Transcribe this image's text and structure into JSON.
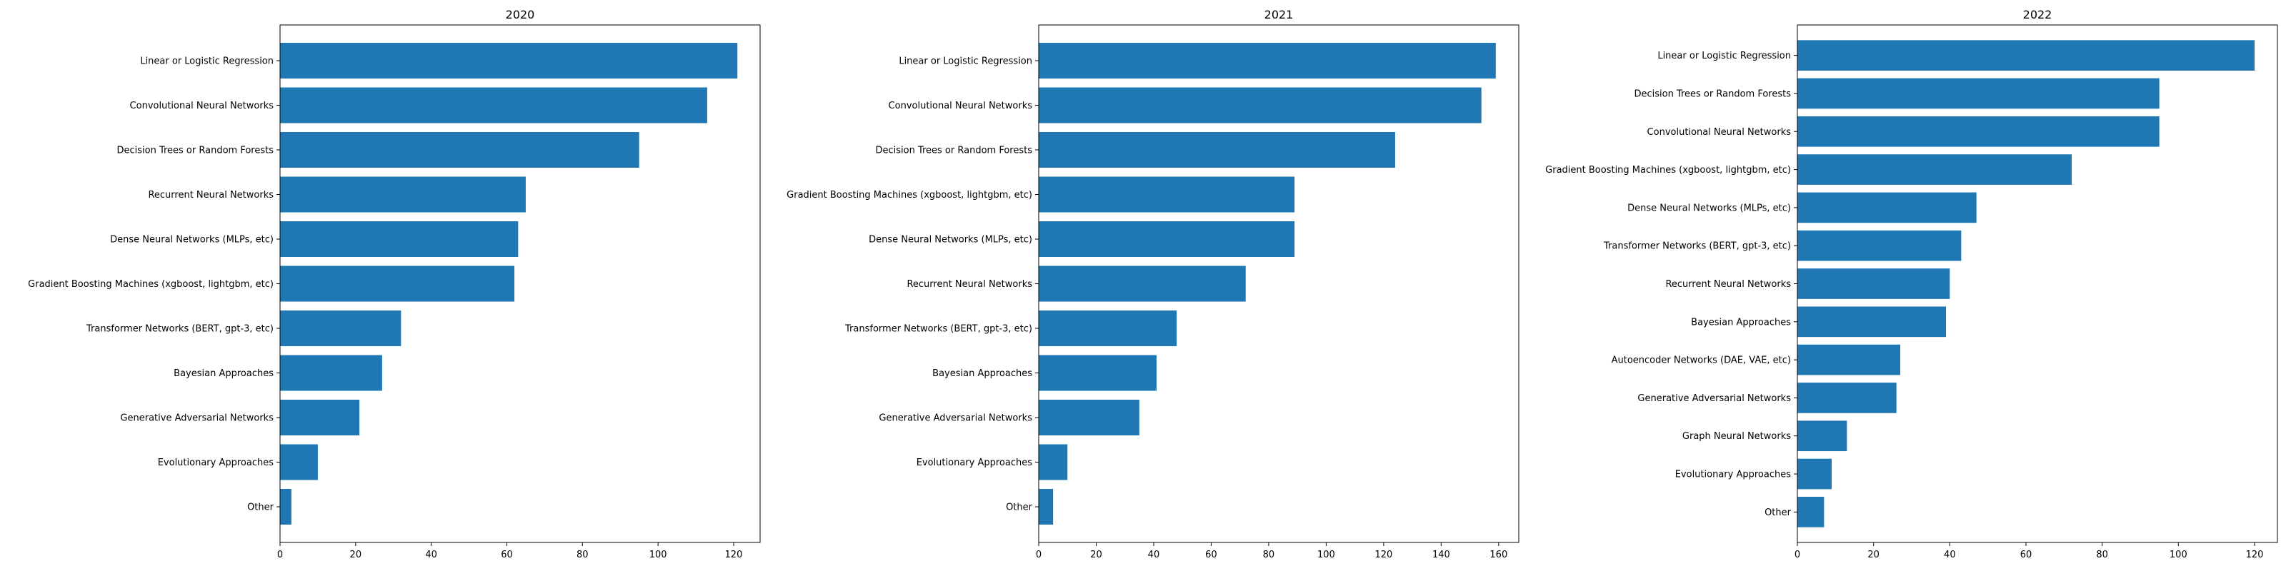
{
  "chart_data": [
    {
      "type": "bar",
      "orientation": "horizontal",
      "title": "2020",
      "xlabel": "",
      "ylabel": "",
      "xlim": [
        0,
        127
      ],
      "xticks": [
        0,
        20,
        40,
        60,
        80,
        100,
        120
      ],
      "grid": false,
      "bar_color": "#1f77b4",
      "categories": [
        "Linear or Logistic Regression",
        "Convolutional Neural Networks",
        "Decision Trees or Random Forests",
        "Recurrent Neural Networks",
        "Dense Neural Networks (MLPs, etc)",
        "Gradient Boosting Machines (xgboost, lightgbm, etc)",
        "Transformer Networks (BERT, gpt-3, etc)",
        "Bayesian Approaches",
        "Generative Adversarial Networks",
        "Evolutionary Approaches",
        "Other"
      ],
      "values": [
        121,
        113,
        95,
        65,
        63,
        62,
        32,
        27,
        21,
        10,
        3
      ]
    },
    {
      "type": "bar",
      "orientation": "horizontal",
      "title": "2021",
      "xlabel": "",
      "ylabel": "",
      "xlim": [
        0,
        167
      ],
      "xticks": [
        0,
        20,
        40,
        60,
        80,
        100,
        120,
        140,
        160
      ],
      "grid": false,
      "bar_color": "#1f77b4",
      "categories": [
        "Linear or Logistic Regression",
        "Convolutional Neural Networks",
        "Decision Trees or Random Forests",
        "Gradient Boosting Machines (xgboost, lightgbm, etc)",
        "Dense Neural Networks (MLPs, etc)",
        "Recurrent Neural Networks",
        "Transformer Networks (BERT, gpt-3, etc)",
        "Bayesian Approaches",
        "Generative Adversarial Networks",
        "Evolutionary Approaches",
        "Other"
      ],
      "values": [
        159,
        154,
        124,
        89,
        89,
        72,
        48,
        41,
        35,
        10,
        5
      ]
    },
    {
      "type": "bar",
      "orientation": "horizontal",
      "title": "2022",
      "xlabel": "",
      "ylabel": "",
      "xlim": [
        0,
        126
      ],
      "xticks": [
        0,
        20,
        40,
        60,
        80,
        100,
        120
      ],
      "grid": false,
      "bar_color": "#1f77b4",
      "categories": [
        "Linear or Logistic Regression",
        "Decision Trees or Random Forests",
        "Convolutional Neural Networks",
        "Gradient Boosting Machines (xgboost, lightgbm, etc)",
        "Dense Neural Networks (MLPs, etc)",
        "Transformer Networks (BERT, gpt-3, etc)",
        "Recurrent Neural Networks",
        "Bayesian Approaches",
        "Autoencoder Networks (DAE, VAE, etc)",
        "Generative Adversarial Networks",
        "Graph Neural Networks",
        "Evolutionary Approaches",
        "Other"
      ],
      "values": [
        120,
        95,
        95,
        72,
        47,
        43,
        40,
        39,
        27,
        26,
        13,
        9,
        7
      ]
    }
  ]
}
